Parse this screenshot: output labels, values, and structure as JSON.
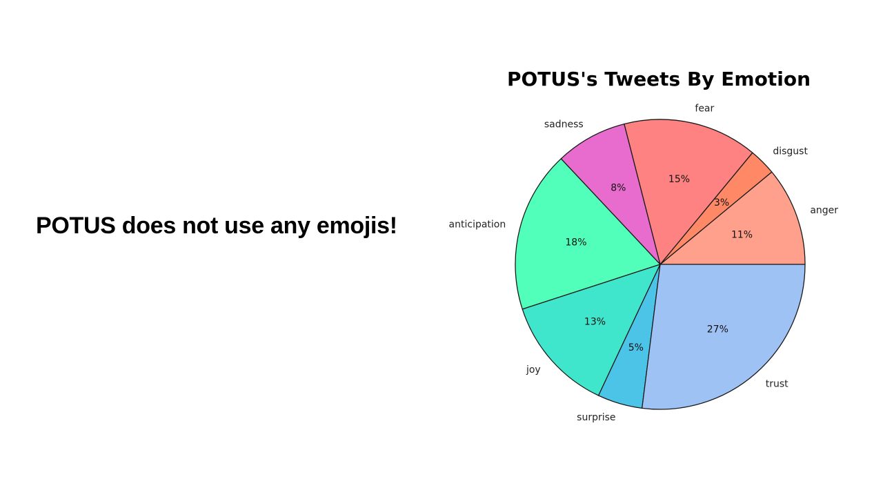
{
  "slide": {
    "statement": "POTUS does not use any emojis!"
  },
  "chart_data": {
    "type": "pie",
    "title": "POTUS's Tweets By Emotion",
    "start_angle_deg": 0,
    "direction": "counterclockwise",
    "slices": [
      {
        "label": "anger",
        "value": 11,
        "pct_label": "11%",
        "color": "#ffa08c"
      },
      {
        "label": "disgust",
        "value": 3,
        "pct_label": "3%",
        "color": "#ff8966"
      },
      {
        "label": "fear",
        "value": 15,
        "pct_label": "15%",
        "color": "#ff8282"
      },
      {
        "label": "sadness",
        "value": 8,
        "pct_label": "8%",
        "color": "#e86ccd"
      },
      {
        "label": "anticipation",
        "value": 18,
        "pct_label": "18%",
        "color": "#52ffba"
      },
      {
        "label": "joy",
        "value": 13,
        "pct_label": "13%",
        "color": "#40e6cc"
      },
      {
        "label": "surprise",
        "value": 5,
        "pct_label": "5%",
        "color": "#4cc4e8"
      },
      {
        "label": "trust",
        "value": 27,
        "pct_label": "27%",
        "color": "#9fc2f5"
      }
    ]
  }
}
